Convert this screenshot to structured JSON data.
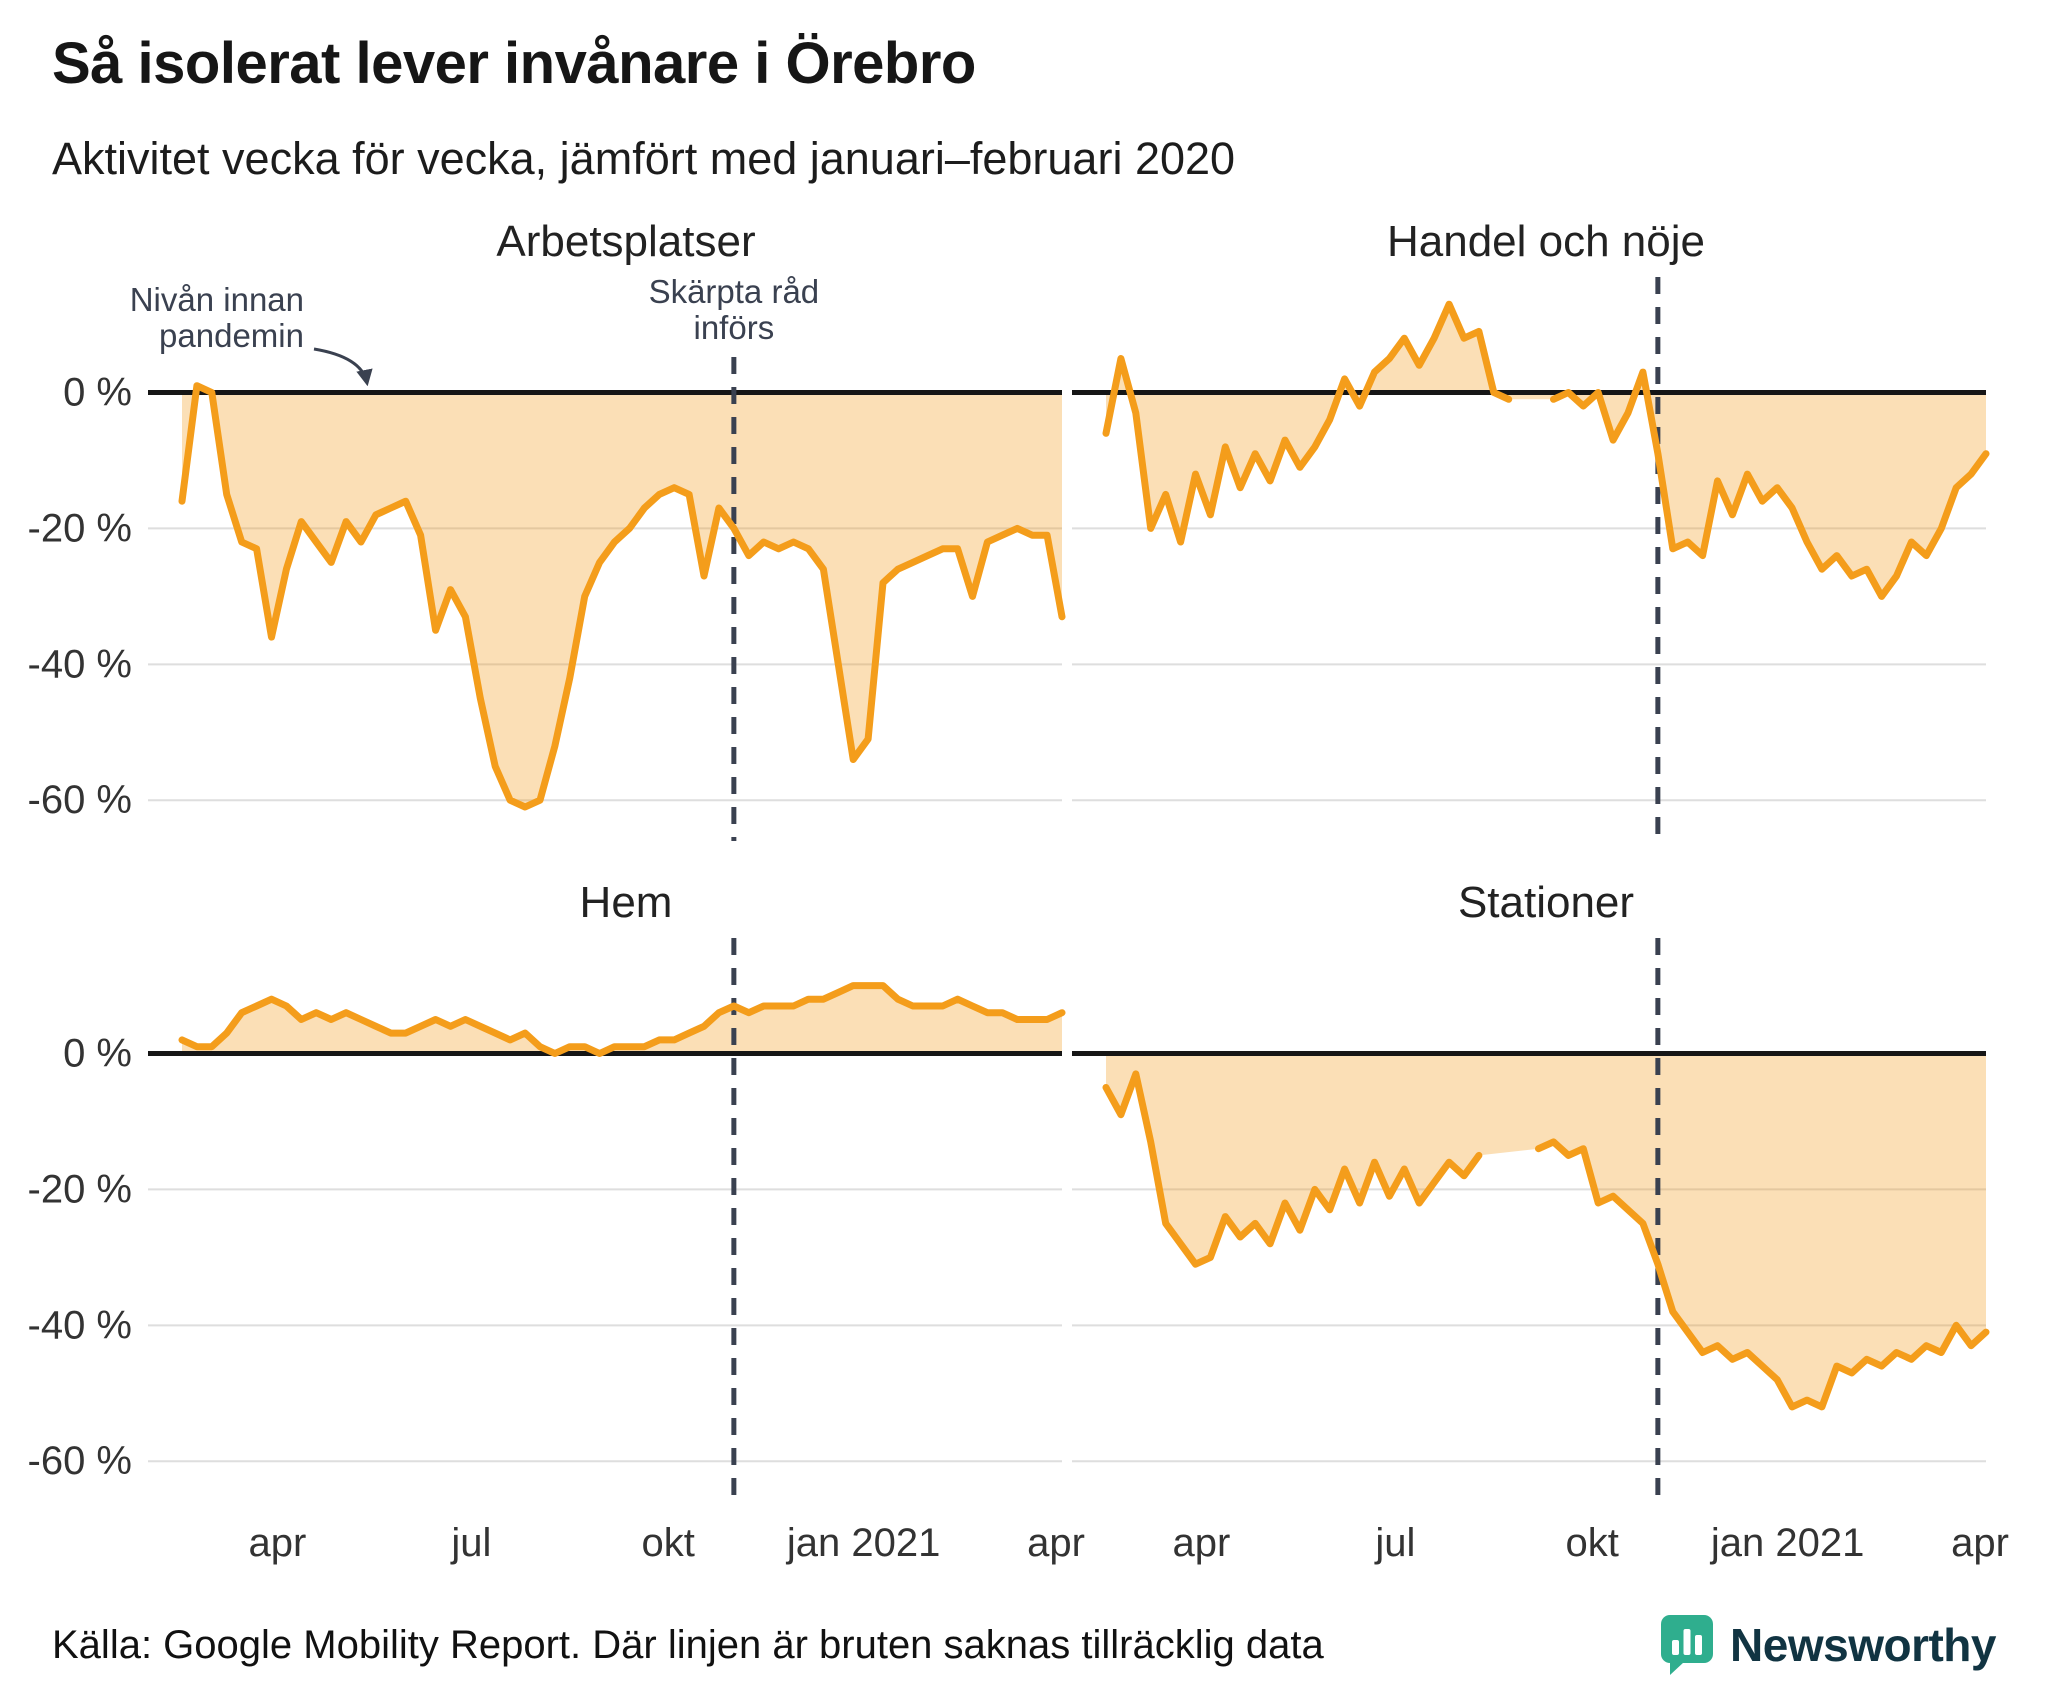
{
  "header": {
    "title": "Så isolerat lever invånare i Örebro",
    "subtitle": "Aktivitet vecka för vecka, jämfört med januari–februari 2020"
  },
  "annotations": {
    "baseline_label": [
      "Nivån innan",
      "pandemin"
    ],
    "event_label": [
      "Skärpta råd",
      "införs"
    ]
  },
  "colors": {
    "accent": "#F49D1B",
    "fill_opacity": 0.32,
    "event": "#3A4150",
    "zero_line": "#161616",
    "grid": "#DEDEDE",
    "brand_teal": "#2FAE8E"
  },
  "axes": {
    "weeks_total": 60,
    "event_week": 37,
    "ylim": [
      -66,
      17
    ],
    "y_ticks": [
      {
        "value": 0,
        "label": "0 %"
      },
      {
        "value": -20,
        "label": "-20 %"
      },
      {
        "value": -40,
        "label": "-40 %"
      },
      {
        "value": -60,
        "label": "-60 %"
      }
    ],
    "x_ticks": [
      {
        "label": "apr",
        "week": 6.4
      },
      {
        "label": "jul",
        "week": 19.4
      },
      {
        "label": "okt",
        "week": 32.6
      },
      {
        "label": "jan 2021",
        "week": 45.7
      },
      {
        "label": "apr",
        "week": 58.6
      }
    ]
  },
  "chart_data": [
    {
      "type": "area",
      "title": "Arbetsplatser",
      "unit": "%",
      "values": [
        -16,
        1,
        0,
        -15,
        -22,
        -23,
        -36,
        -26,
        -19,
        -22,
        -25,
        -19,
        -22,
        -18,
        -17,
        -16,
        -21,
        -35,
        -29,
        -33,
        -45,
        -55,
        -60,
        -61,
        -60,
        -52,
        -42,
        -30,
        -25,
        -22,
        -20,
        -17,
        -15,
        -14,
        -15,
        -27,
        -17,
        -20,
        -24,
        -22,
        -23,
        -22,
        -23,
        -26,
        -40,
        -54,
        -51,
        -28,
        -26,
        -25,
        -24,
        -23,
        -23,
        -30,
        -22,
        -21,
        -20,
        -21,
        -21,
        -33
      ]
    },
    {
      "type": "area",
      "title": "Handel och nöje",
      "unit": "%",
      "values": [
        -6,
        5,
        -3,
        -20,
        -15,
        -22,
        -12,
        -18,
        -8,
        -14,
        -9,
        -13,
        -7,
        -11,
        -8,
        -4,
        2,
        -2,
        3,
        5,
        8,
        4,
        8,
        13,
        8,
        9,
        0,
        -1,
        null,
        null,
        -1,
        0,
        -2,
        0,
        -7,
        -3,
        3,
        -9,
        -23,
        -22,
        -24,
        -13,
        -18,
        -12,
        -16,
        -14,
        -17,
        -22,
        -26,
        -24,
        -27,
        -26,
        -30,
        -27,
        -22,
        -24,
        -20,
        -14,
        -12,
        -9
      ]
    },
    {
      "type": "area",
      "title": "Hem",
      "unit": "%",
      "values": [
        2,
        1,
        1,
        3,
        6,
        7,
        8,
        7,
        5,
        6,
        5,
        6,
        5,
        4,
        3,
        3,
        4,
        5,
        4,
        5,
        4,
        3,
        2,
        3,
        1,
        0,
        1,
        1,
        0,
        1,
        1,
        1,
        2,
        2,
        3,
        4,
        6,
        7,
        6,
        7,
        7,
        7,
        8,
        8,
        9,
        10,
        10,
        10,
        8,
        7,
        7,
        7,
        8,
        7,
        6,
        6,
        5,
        5,
        5,
        6
      ]
    },
    {
      "type": "area",
      "title": "Stationer",
      "unit": "%",
      "values": [
        -5,
        -9,
        -3,
        -13,
        -25,
        -28,
        -31,
        -30,
        -24,
        -27,
        -25,
        -28,
        -22,
        -26,
        -20,
        -23,
        -17,
        -22,
        -16,
        -21,
        -17,
        -22,
        -19,
        -16,
        -18,
        -15,
        null,
        null,
        null,
        -14,
        -13,
        -15,
        -14,
        -22,
        -21,
        -23,
        -25,
        -31,
        -38,
        -41,
        -44,
        -43,
        -45,
        -44,
        -46,
        -48,
        -52,
        -51,
        -52,
        -46,
        -47,
        -45,
        -46,
        -44,
        -45,
        -43,
        -44,
        -40,
        -43,
        -41
      ]
    }
  ],
  "footer": {
    "source": "Källa: Google Mobility Report. Där linjen är bruten saknas tillräcklig data",
    "brand": "Newsworthy"
  }
}
